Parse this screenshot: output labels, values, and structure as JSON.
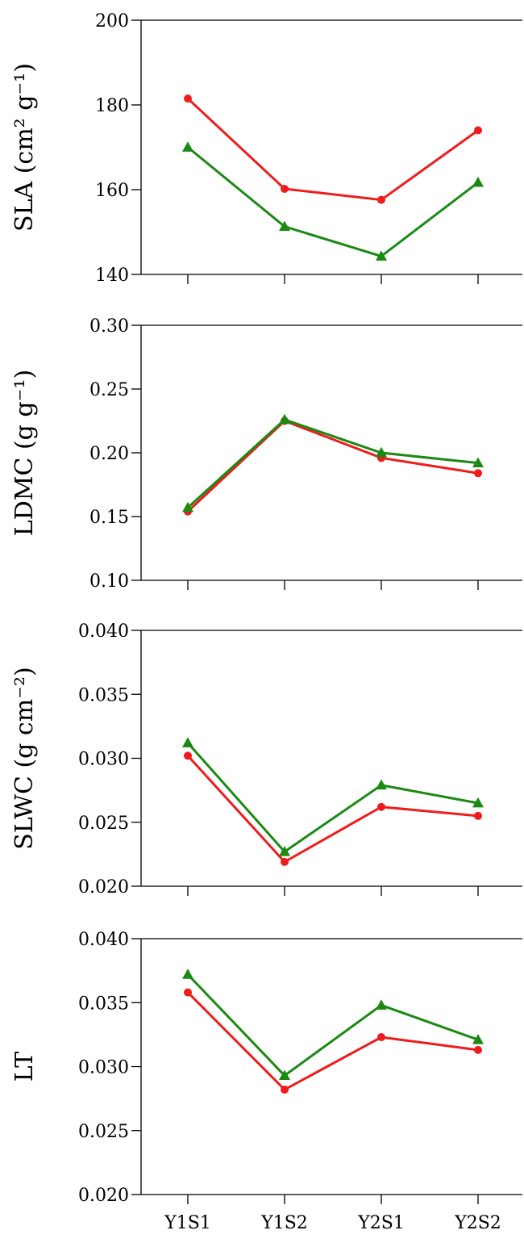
{
  "chart_data": [
    {
      "type": "line",
      "categories": [
        "Y1S1",
        "Y1S2",
        "Y2S1",
        "Y2S2"
      ],
      "ylabel": "SLA (cm² g⁻¹)",
      "ylim": [
        140,
        200
      ],
      "yticks": [
        140,
        160,
        180,
        200
      ],
      "ytick_labels": [
        "140",
        "160",
        "180",
        "200"
      ],
      "series": [
        {
          "color": "#ee1c1c",
          "marker": "circle",
          "values": [
            181.5,
            160.2,
            157.6,
            174.0
          ]
        },
        {
          "color": "#1b8a12",
          "marker": "triangle",
          "values": [
            170.0,
            151.3,
            144.3,
            161.7
          ]
        }
      ]
    },
    {
      "type": "line",
      "categories": [
        "Y1S1",
        "Y1S2",
        "Y2S1",
        "Y2S2"
      ],
      "ylabel": "LDMC (g g⁻¹)",
      "ylim": [
        0.1,
        0.3
      ],
      "yticks": [
        0.1,
        0.15,
        0.2,
        0.25,
        0.3
      ],
      "ytick_labels": [
        "0.10",
        "0.15",
        "0.20",
        "0.25",
        "0.30"
      ],
      "series": [
        {
          "color": "#ee1c1c",
          "marker": "circle",
          "values": [
            0.154,
            0.225,
            0.196,
            0.184
          ]
        },
        {
          "color": "#1b8a12",
          "marker": "triangle",
          "values": [
            0.157,
            0.226,
            0.2,
            0.192
          ]
        }
      ]
    },
    {
      "type": "line",
      "categories": [
        "Y1S1",
        "Y1S2",
        "Y2S1",
        "Y2S2"
      ],
      "ylabel": "SLWC (g cm⁻²)",
      "ylim": [
        0.02,
        0.04
      ],
      "yticks": [
        0.02,
        0.025,
        0.03,
        0.035,
        0.04
      ],
      "ytick_labels": [
        "0.020",
        "0.025",
        "0.030",
        "0.035",
        "0.040"
      ],
      "series": [
        {
          "color": "#ee1c1c",
          "marker": "circle",
          "values": [
            0.0302,
            0.0219,
            0.0262,
            0.0255
          ]
        },
        {
          "color": "#1b8a12",
          "marker": "triangle",
          "values": [
            0.0312,
            0.0227,
            0.0279,
            0.0265
          ]
        }
      ]
    },
    {
      "type": "line",
      "categories": [
        "Y1S1",
        "Y1S2",
        "Y2S1",
        "Y2S2"
      ],
      "ylabel": "LT",
      "ylim": [
        0.02,
        0.04
      ],
      "yticks": [
        0.02,
        0.025,
        0.03,
        0.035,
        0.04
      ],
      "ytick_labels": [
        "0.020",
        "0.025",
        "0.030",
        "0.035",
        "0.040"
      ],
      "series": [
        {
          "color": "#ee1c1c",
          "marker": "circle",
          "values": [
            0.0358,
            0.0282,
            0.0323,
            0.0313
          ]
        },
        {
          "color": "#1b8a12",
          "marker": "triangle",
          "values": [
            0.0372,
            0.0293,
            0.0348,
            0.0321
          ]
        }
      ]
    }
  ]
}
